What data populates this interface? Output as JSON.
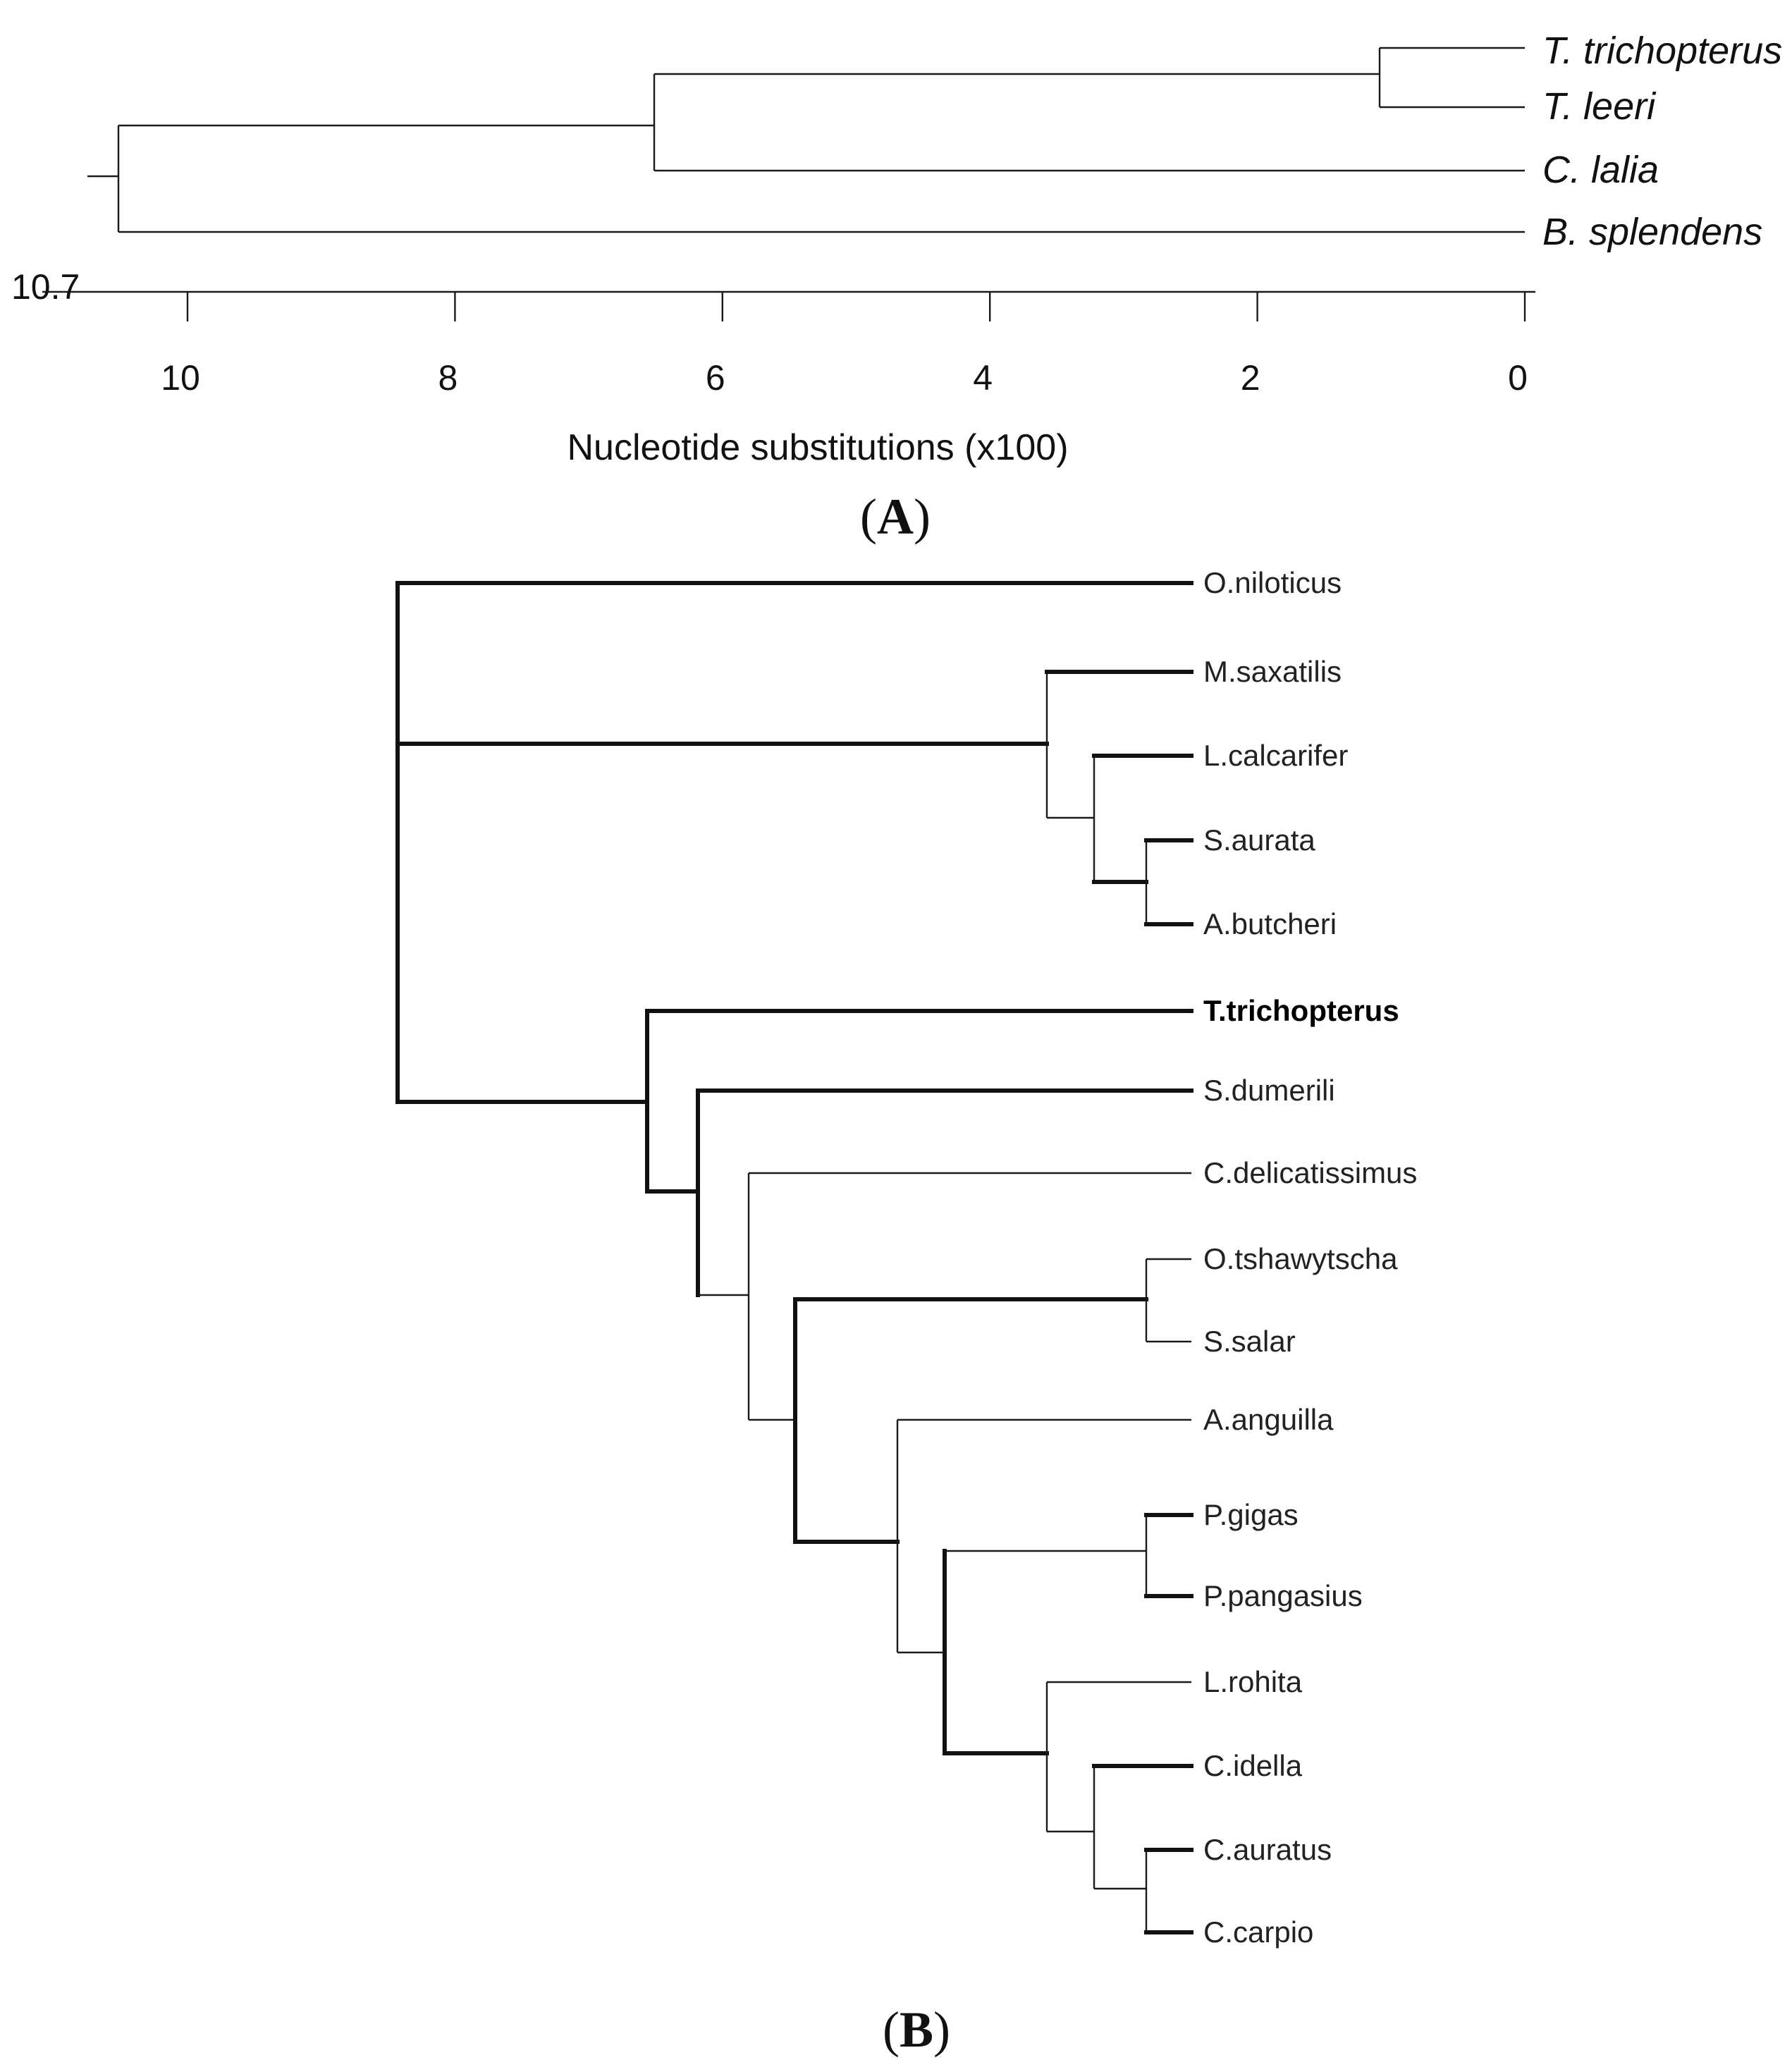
{
  "panel_a": {
    "label_open": "(",
    "label_letter": "A",
    "label_close": ")",
    "root_value_label": "10.7",
    "axis": {
      "title": "Nucleotide substitutions (x100)",
      "ticks": [
        {
          "value": 10,
          "label": "10"
        },
        {
          "value": 8,
          "label": "8"
        },
        {
          "value": 6,
          "label": "6"
        },
        {
          "value": 4,
          "label": "4"
        },
        {
          "value": 2,
          "label": "2"
        },
        {
          "value": 0,
          "label": "0"
        }
      ]
    },
    "taxa": [
      "T. trichopterus",
      "T. leeri",
      "C. lalia",
      "B. splendens"
    ],
    "node_ages": {
      "root": 10.7,
      "ctenops_trichopodus": 6.6,
      "trichopodus": 1.15
    }
  },
  "panel_b": {
    "label_open": "(",
    "label_letter": "B",
    "label_close": ")",
    "taxa": [
      {
        "name": "O.niloticus",
        "bold": false
      },
      {
        "name": "M.saxatilis",
        "bold": false
      },
      {
        "name": "L.calcarifer",
        "bold": false
      },
      {
        "name": "S.aurata",
        "bold": false
      },
      {
        "name": "A.butcheri",
        "bold": false
      },
      {
        "name": "T.trichopterus",
        "bold": true
      },
      {
        "name": "S.dumerili",
        "bold": false
      },
      {
        "name": "C.delicatissimus",
        "bold": false
      },
      {
        "name": "O.tshawytscha",
        "bold": false
      },
      {
        "name": "S.salar",
        "bold": false
      },
      {
        "name": "A.anguilla",
        "bold": false
      },
      {
        "name": "P.gigas",
        "bold": false
      },
      {
        "name": "P.pangasius",
        "bold": false
      },
      {
        "name": "L.rohita",
        "bold": false
      },
      {
        "name": "C.idella",
        "bold": false
      },
      {
        "name": "C.auratus",
        "bold": false
      },
      {
        "name": "C.carpio",
        "bold": false
      }
    ],
    "topology": "(O.niloticus,(M.saxatilis,(L.calcarifer,(S.aurata,A.butcheri))),(T.trichopterus,(S.dumerili,(C.delicatissimus,((O.tshawytscha,S.salar),(A.anguilla,((P.gigas,P.pangasius),(L.rohita,(C.idella,(C.auratus,C.carpio))))))))))"
  },
  "colors": {
    "ink": "#111111",
    "background": "#ffffff"
  }
}
